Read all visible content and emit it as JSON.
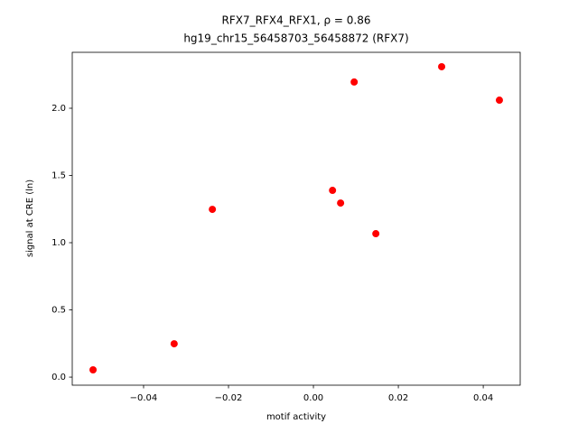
{
  "chart_data": {
    "type": "scatter",
    "title": "RFX7_RFX4_RFX1, ρ = 0.86",
    "subtitle": "hg19_chr15_56458703_56458872 (RFX7)",
    "x_label": "motif activity",
    "y_label": "signal at CRE (ln)",
    "color": "#ff0000",
    "grid": false,
    "x": [
      -0.0519,
      -0.0328,
      -0.0238,
      0.0045,
      0.0064,
      0.0096,
      0.0147,
      0.0302,
      0.0438
    ],
    "values": [
      0.054,
      0.248,
      1.248,
      1.389,
      1.295,
      2.195,
      1.067,
      2.309,
      2.06
    ],
    "xlim": [
      -0.0568,
      0.0487
    ],
    "ylim": [
      -0.06,
      2.416
    ],
    "xticks": [
      {
        "value": -0.04,
        "label": "−0.04"
      },
      {
        "value": -0.02,
        "label": "−0.02"
      },
      {
        "value": 0,
        "label": "0.00"
      },
      {
        "value": 0.02,
        "label": "0.02"
      },
      {
        "value": 0.04,
        "label": "0.04"
      }
    ],
    "yticks": [
      {
        "value": 0,
        "label": "0.0"
      },
      {
        "value": 0.5,
        "label": "0.5"
      },
      {
        "value": 1,
        "label": "1.0"
      },
      {
        "value": 1.5,
        "label": "1.5"
      },
      {
        "value": 2,
        "label": "2.0"
      }
    ]
  }
}
